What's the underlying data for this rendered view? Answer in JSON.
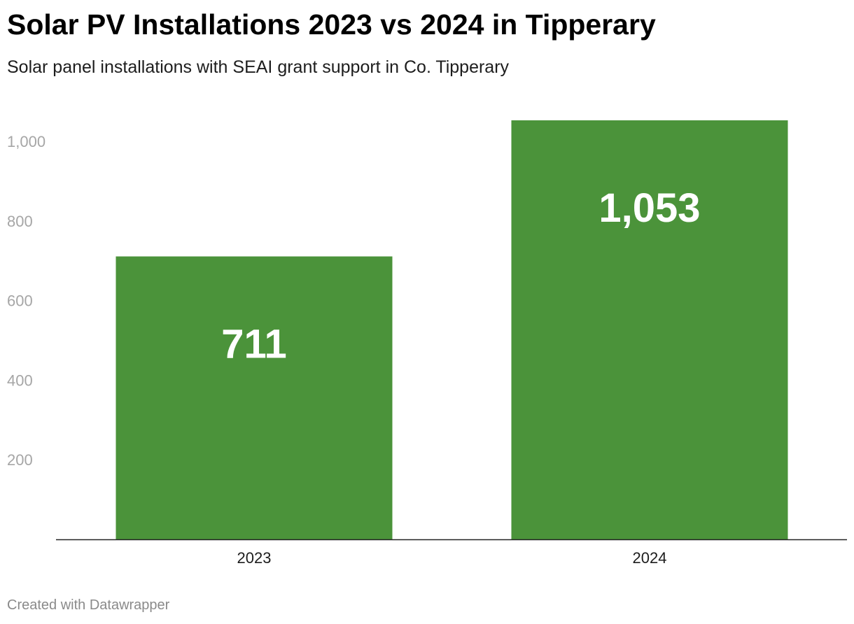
{
  "header": {
    "title": "Solar PV Installations 2023 vs 2024 in Tipperary",
    "subtitle": "Solar panel installations with SEAI grant support in Co. Tipperary"
  },
  "footer": {
    "credit": "Created with Datawrapper"
  },
  "colors": {
    "bar": "#4b933a",
    "axis_line": "#222222",
    "tick_label": "#a6a6a6",
    "category_label": "#1d1d1d",
    "value_label": "#ffffff"
  },
  "chart_data": {
    "type": "bar",
    "title": "Solar PV Installations 2023 vs 2024 in Tipperary",
    "subtitle": "Solar panel installations with SEAI grant support in Co. Tipperary",
    "categories": [
      "2023",
      "2024"
    ],
    "values": [
      711,
      1053
    ],
    "value_labels": [
      "711",
      "1,053"
    ],
    "xlabel": "",
    "ylabel": "",
    "ylim": [
      0,
      1053
    ],
    "yticks": [
      200,
      400,
      600,
      800,
      1000
    ],
    "ytick_labels": [
      "200",
      "400",
      "600",
      "800",
      "1,000"
    ],
    "grid": false,
    "legend": "none"
  }
}
